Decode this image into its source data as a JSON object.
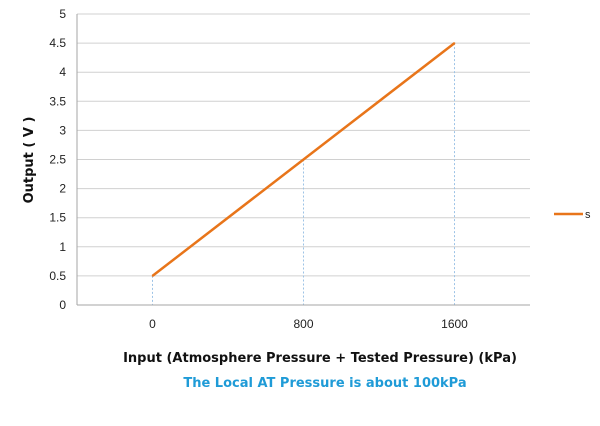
{
  "chart_data": {
    "type": "line",
    "title": "",
    "xlabel": "Input (Atmosphere Pressure + Tested Pressure) (kPa)",
    "ylabel": "Output ( V )",
    "note": "The Local AT Pressure is about 100kPa",
    "x_categories": [
      "0",
      "800",
      "1600"
    ],
    "y_ticks": [
      "0",
      "0.5",
      "1",
      "1.5",
      "2",
      "2.5",
      "3",
      "3.5",
      "4",
      "4.5",
      "5"
    ],
    "ylim": [
      0,
      5
    ],
    "grid": "horizontal",
    "legend": {
      "position": "right",
      "entries": [
        "s"
      ]
    },
    "series": [
      {
        "name": "s",
        "x": [
          0,
          800,
          1600
        ],
        "y": [
          0.5,
          2.5,
          4.5
        ]
      }
    ],
    "colors": {
      "series": "#e8751a",
      "dropline": "#9dc3e6",
      "note": "#1f9bd7",
      "grid": "#d0d0d0",
      "axis": "#a6a6a6"
    }
  }
}
